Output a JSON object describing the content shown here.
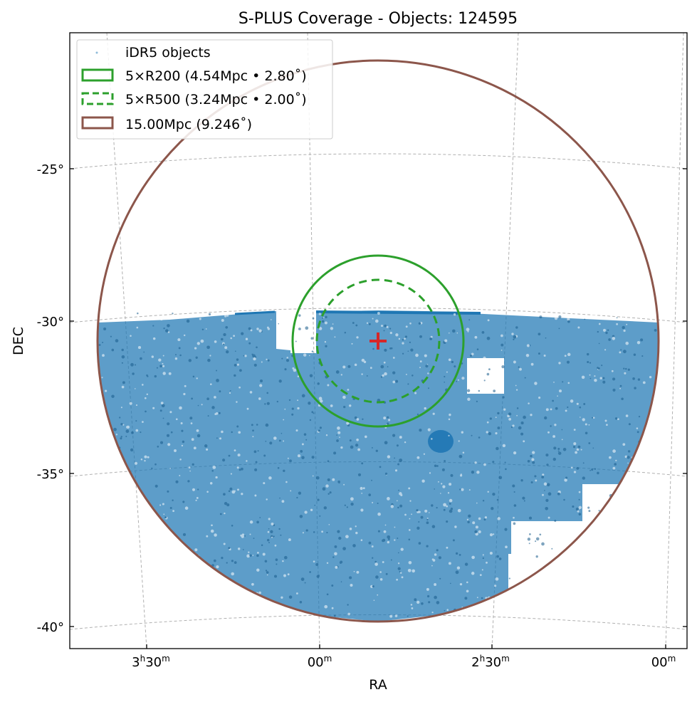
{
  "chart_data": {
    "type": "scatter",
    "projection": "sky (WCS)",
    "title": "S-PLUS Coverage - Objects: 124595",
    "xlabel": "RA",
    "ylabel": "DEC",
    "object_count": 124595,
    "grid": true,
    "legend_position": "top-left",
    "ra_tick_labels": [
      {
        "h": "3",
        "m": "30"
      },
      {
        "h": "",
        "m": "00"
      },
      {
        "h": "2",
        "m": "30"
      },
      {
        "h": "",
        "m": "00"
      }
    ],
    "dec_ticks": [
      -25,
      -30,
      -35,
      -40
    ],
    "dec_tick_labels": [
      "-25°",
      "-30°",
      "-35°",
      "-40°"
    ],
    "center": {
      "marker": "+",
      "dec_deg": -30.7
    },
    "circles": [
      {
        "label": "5×R200 (4.54Mpc • 2.80˚)",
        "radius_deg": 2.8,
        "style": "solid",
        "color": "#2ca02c"
      },
      {
        "label": "5×R500 (3.24Mpc • 2.00˚)",
        "radius_deg": 2.0,
        "style": "dashed",
        "color": "#2ca02c"
      },
      {
        "label": "15.00Mpc (9.246˚)",
        "radius_deg": 9.246,
        "style": "solid",
        "color": "#8c564b"
      }
    ],
    "legend": [
      {
        "label": "iDR5 objects",
        "kind": "points",
        "color": "#1f77b4"
      },
      {
        "label": "5×R200 (4.54Mpc • 2.80˚)",
        "kind": "solid",
        "color": "#2ca02c"
      },
      {
        "label": "5×R500 (3.24Mpc • 2.00˚)",
        "kind": "dashed",
        "color": "#2ca02c"
      },
      {
        "label": "15.00Mpc (9.246˚)",
        "kind": "solid",
        "color": "#8c564b"
      }
    ],
    "colors": {
      "points": "#1f77b4",
      "r200": "#2ca02c",
      "r500": "#2ca02c",
      "outer": "#8c564b",
      "center": "#d62728",
      "grid": "#b0b0b0"
    }
  }
}
